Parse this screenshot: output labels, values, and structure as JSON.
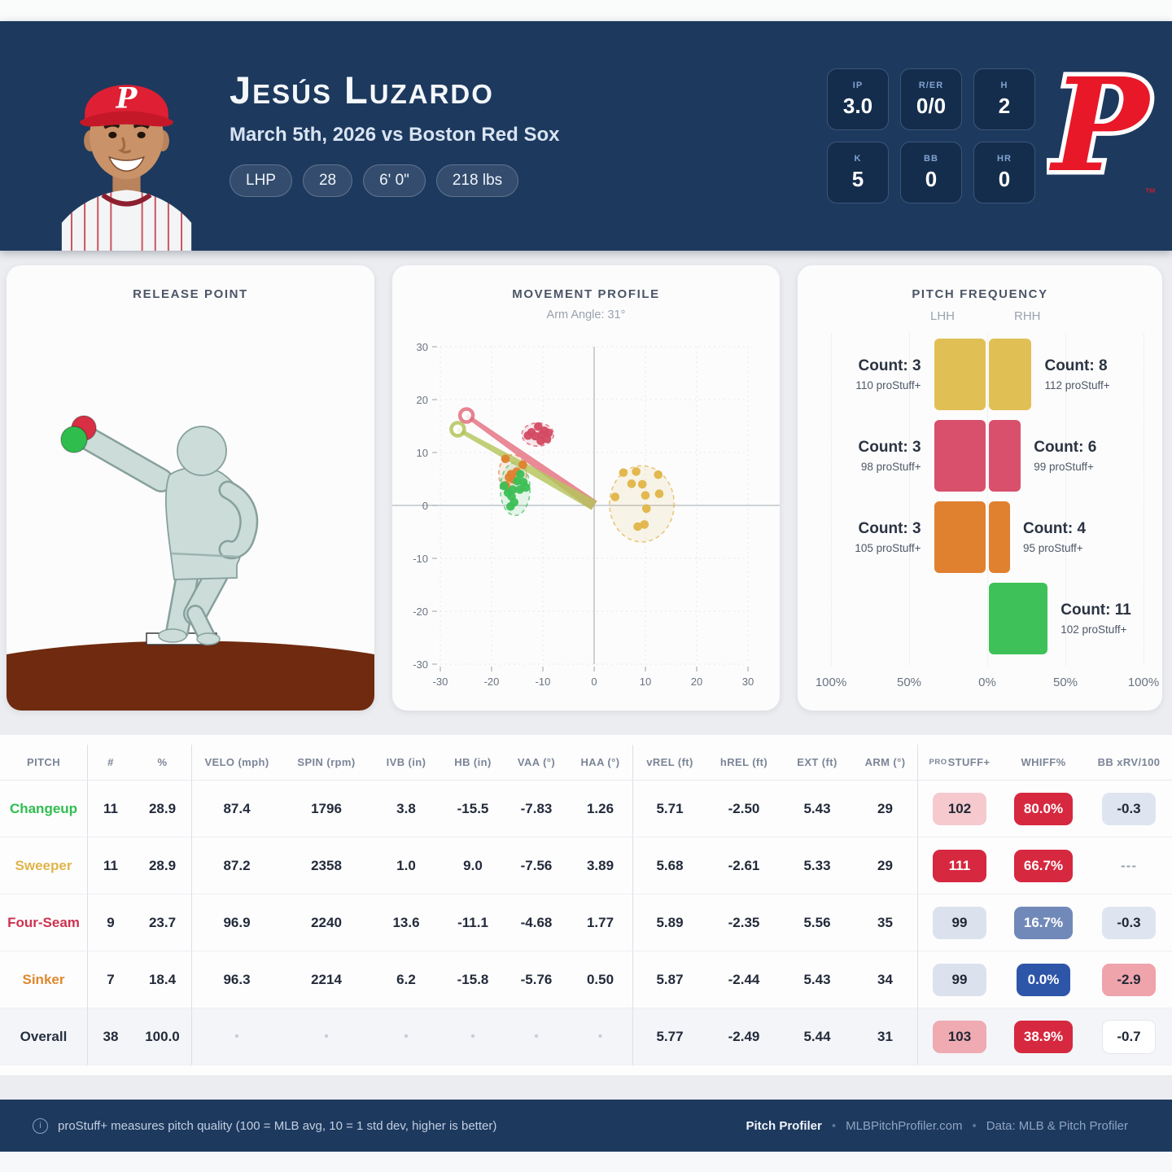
{
  "colors": {
    "navy": "#1d395e",
    "phillies_red": "#e81828"
  },
  "header": {
    "player_name": "Jesús Luzardo",
    "game_info": "March 5th, 2026 vs Boston Red Sox",
    "badges": [
      "LHP",
      "28",
      "6' 0\"",
      "218 lbs"
    ],
    "stats": [
      {
        "label": "IP",
        "value": "3.0"
      },
      {
        "label": "R/ER",
        "value": "0/0"
      },
      {
        "label": "H",
        "value": "2"
      },
      {
        "label": "K",
        "value": "5"
      },
      {
        "label": "BB",
        "value": "0"
      },
      {
        "label": "HR",
        "value": "0"
      }
    ],
    "team_logo": "P",
    "logo_tm": "™"
  },
  "panels": {
    "release_point": {
      "title": "RELEASE POINT",
      "dot_colors": [
        "#d92f45",
        "#2fbd4e"
      ]
    }
  },
  "chart_data": [
    {
      "id": "movement_profile",
      "type": "scatter",
      "title": "MOVEMENT PROFILE",
      "subtitle": "Arm Angle: 31°",
      "arm_angle_deg": 31,
      "xlim": [
        -30,
        30
      ],
      "ylim": [
        -30,
        30
      ],
      "ticks": [
        -30,
        -20,
        -10,
        0,
        10,
        20,
        30
      ],
      "grid": "dashed",
      "arm_lines": [
        {
          "name": "arm-angle-line-red",
          "color": "#e4707f",
          "x2": -24.9,
          "y2": 17.0
        },
        {
          "name": "arm-angle-line-green",
          "color": "#b5c45c",
          "x2": -26.6,
          "y2": 14.4
        }
      ],
      "series": [
        {
          "name": "Four-Seam",
          "color": "#d34a62",
          "ellipse": {
            "cx": -11.0,
            "cy": 13.4,
            "rx": 3.1,
            "ry": 2.2
          },
          "points": [
            [
              -12.2,
              13.8
            ],
            [
              -10.9,
              14.9
            ],
            [
              -9.7,
              14.1
            ],
            [
              -11.5,
              13.1
            ],
            [
              -10.2,
              13.4
            ],
            [
              -8.9,
              13.7
            ],
            [
              -12.9,
              13.2
            ],
            [
              -10.4,
              12.2
            ],
            [
              -9.2,
              12.6
            ]
          ]
        },
        {
          "name": "Sinker",
          "color": "#df7f2e",
          "ellipse": {
            "cx": -15.9,
            "cy": 6.0,
            "rx": 2.7,
            "ry": 3.6
          },
          "points": [
            [
              -17.3,
              8.8
            ],
            [
              -13.9,
              7.7
            ],
            [
              -16.2,
              5.9
            ],
            [
              -15.8,
              4.9
            ],
            [
              -17.2,
              3.8
            ],
            [
              -15.1,
              6.4
            ],
            [
              -16.6,
              5.3
            ]
          ]
        },
        {
          "name": "Changeup",
          "color": "#3bbf55",
          "ellipse": {
            "cx": -15.4,
            "cy": 3.1,
            "rx": 2.9,
            "ry": 5.0
          },
          "points": [
            [
              -14.4,
              5.9
            ],
            [
              -13.8,
              4.4
            ],
            [
              -13.3,
              3.4
            ],
            [
              -17.6,
              3.7
            ],
            [
              -15.9,
              3.0
            ],
            [
              -16.1,
              1.7
            ],
            [
              -14.5,
              3.0
            ],
            [
              -16.3,
              -0.2
            ],
            [
              -15.0,
              4.6
            ],
            [
              -16.8,
              2.4
            ],
            [
              -15.6,
              0.6
            ]
          ]
        },
        {
          "name": "Sweeper",
          "color": "#e0b447",
          "ellipse": {
            "cx": 9.3,
            "cy": 0.3,
            "rx": 6.3,
            "ry": 7.2
          },
          "points": [
            [
              4.1,
              1.6
            ],
            [
              5.7,
              6.2
            ],
            [
              8.2,
              6.4
            ],
            [
              12.5,
              5.8
            ],
            [
              7.3,
              4.1
            ],
            [
              9.4,
              4.0
            ],
            [
              12.7,
              2.2
            ],
            [
              10.0,
              1.9
            ],
            [
              10.2,
              -0.6
            ],
            [
              9.8,
              -3.6
            ],
            [
              8.5,
              -4.0
            ]
          ]
        }
      ]
    },
    {
      "id": "pitch_frequency",
      "type": "bar",
      "title": "PITCH FREQUENCY",
      "groups": [
        "LHH",
        "RHH"
      ],
      "axis_labels": [
        "100%",
        "50%",
        "0%",
        "50%",
        "100%"
      ],
      "count_prefix": "Count: ",
      "prostuff_suffix": " proStuff+",
      "rows": [
        {
          "pitch": "Sweeper",
          "color": "#e0c055",
          "lhh": {
            "count": 3,
            "prostuff": 110,
            "pct": 33.3
          },
          "rhh": {
            "count": 8,
            "prostuff": 112,
            "pct": 27.6
          }
        },
        {
          "pitch": "Four-Seam",
          "color": "#d9506c",
          "lhh": {
            "count": 3,
            "prostuff": 98,
            "pct": 33.3
          },
          "rhh": {
            "count": 6,
            "prostuff": 99,
            "pct": 20.7
          }
        },
        {
          "pitch": "Sinker",
          "color": "#e0812f",
          "lhh": {
            "count": 3,
            "prostuff": 105,
            "pct": 33.3
          },
          "rhh": {
            "count": 4,
            "prostuff": 95,
            "pct": 13.8
          }
        },
        {
          "pitch": "Changeup",
          "color": "#3ec158",
          "lhh": null,
          "rhh": {
            "count": 11,
            "prostuff": 102,
            "pct": 37.9
          }
        }
      ]
    }
  ],
  "table": {
    "columns": [
      "PITCH",
      "#",
      "%",
      "VELO (mph)",
      "SPIN (rpm)",
      "IVB (in)",
      "HB (in)",
      "VAA (°)",
      "HAA (°)",
      "vREL (ft)",
      "hREL (ft)",
      "EXT (ft)",
      "ARM (°)",
      "proSTUFF+",
      "WHIFF%",
      "BB xRV/100"
    ],
    "rows": [
      {
        "pitch": "Changeup",
        "pitch_color": "#2fbe4f",
        "values": [
          "11",
          "28.9",
          "87.4",
          "1796",
          "3.8",
          "-15.5",
          "-7.83",
          "1.26",
          "5.71",
          "-2.50",
          "5.43",
          "29"
        ],
        "stuff": {
          "text": "102",
          "bg": "#f5c9ce",
          "fg": "#212836"
        },
        "whiff": {
          "text": "80.0%",
          "bg": "#d6283f",
          "fg": "#ffffff"
        },
        "bb": {
          "text": "-0.3",
          "bg": "#dfe5f0",
          "fg": "#212836"
        }
      },
      {
        "pitch": "Sweeper",
        "pitch_color": "#e0b44a",
        "values": [
          "11",
          "28.9",
          "87.2",
          "2358",
          "1.0",
          "9.0",
          "-7.56",
          "3.89",
          "5.68",
          "-2.61",
          "5.33",
          "29"
        ],
        "stuff": {
          "text": "111",
          "bg": "#d6283f",
          "fg": "#ffffff"
        },
        "whiff": {
          "text": "66.7%",
          "bg": "#d6283f",
          "fg": "#ffffff"
        },
        "bb": {
          "text": "---",
          "bg": "",
          "fg": "#9aa3b0"
        }
      },
      {
        "pitch": "Four-Seam",
        "pitch_color": "#cc3350",
        "values": [
          "9",
          "23.7",
          "96.9",
          "2240",
          "13.6",
          "-11.1",
          "-4.68",
          "1.77",
          "5.89",
          "-2.35",
          "5.56",
          "35"
        ],
        "stuff": {
          "text": "99",
          "bg": "#dbe2ee",
          "fg": "#212836"
        },
        "whiff": {
          "text": "16.7%",
          "bg": "#7189b9",
          "fg": "#ffffff"
        },
        "bb": {
          "text": "-0.3",
          "bg": "#dfe5f0",
          "fg": "#212836"
        }
      },
      {
        "pitch": "Sinker",
        "pitch_color": "#e0882e",
        "values": [
          "7",
          "18.4",
          "96.3",
          "2214",
          "6.2",
          "-15.8",
          "-5.76",
          "0.50",
          "5.87",
          "-2.44",
          "5.43",
          "34"
        ],
        "stuff": {
          "text": "99",
          "bg": "#dbe2ee",
          "fg": "#212836"
        },
        "whiff": {
          "text": "0.0%",
          "bg": "#2d56a8",
          "fg": "#ffffff"
        },
        "bb": {
          "text": "-2.9",
          "bg": "#efa3ab",
          "fg": "#212836"
        }
      },
      {
        "pitch": "Overall",
        "pitch_color": "#273041",
        "overall": true,
        "values": [
          "38",
          "100.0",
          "•",
          "•",
          "•",
          "•",
          "•",
          "•",
          "5.77",
          "-2.49",
          "5.44",
          "31"
        ],
        "stuff": {
          "text": "103",
          "bg": "#efaab2",
          "fg": "#212836"
        },
        "whiff": {
          "text": "38.9%",
          "bg": "#d6283f",
          "fg": "#ffffff"
        },
        "bb": {
          "text": "-0.7",
          "bg": "#ffffff",
          "fg": "#212836",
          "border": true
        }
      }
    ]
  },
  "footer": {
    "icon": "i",
    "note": "proStuff+ measures pitch quality (100 = MLB avg, 10 = 1 std dev, higher is better)",
    "brand": "Pitch Profiler",
    "bullet": "•",
    "site": "MLBPitchProfiler.com",
    "data_source": "Data: MLB & Pitch Profiler"
  }
}
